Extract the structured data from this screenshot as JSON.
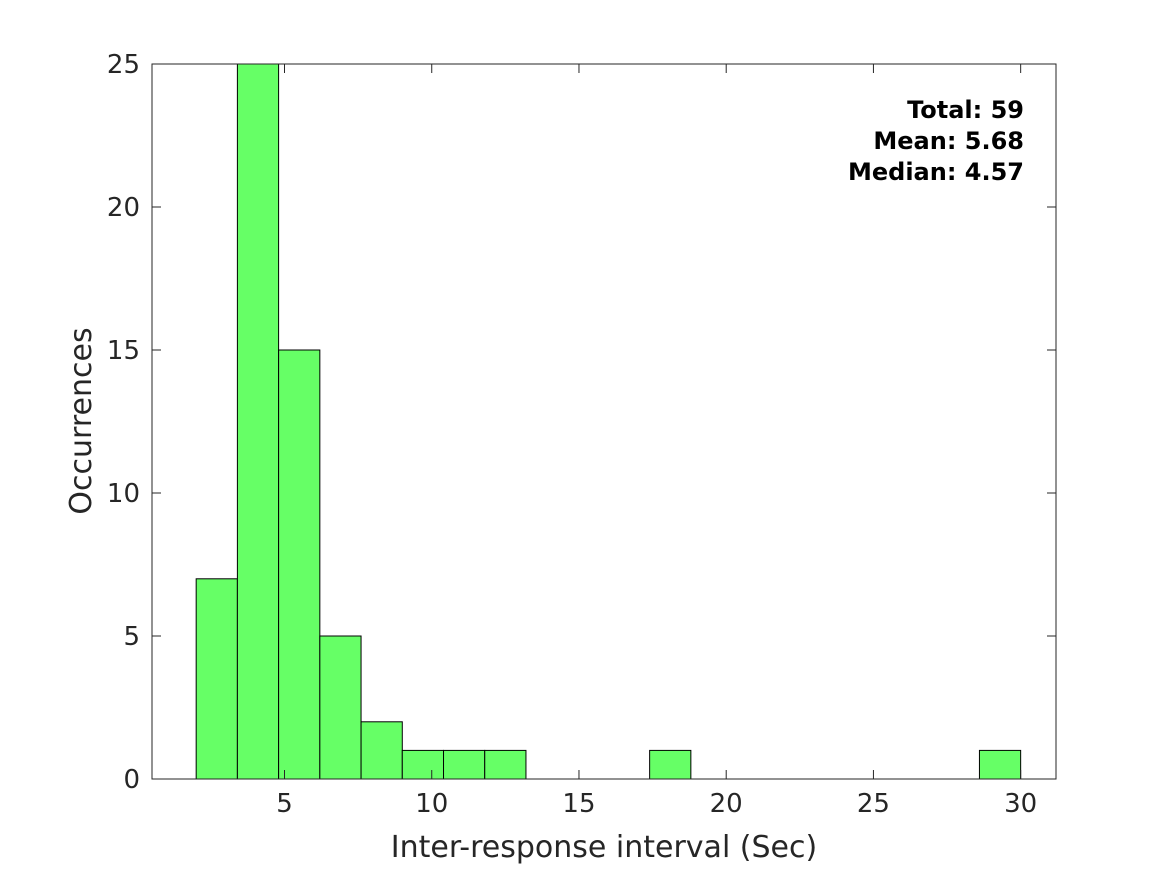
{
  "chart_data": {
    "type": "bar",
    "title": "",
    "xlabel": "Inter-response interval (Sec)",
    "ylabel": "Occurrences",
    "xlim": [
      0.5,
      31.2
    ],
    "ylim": [
      0,
      25
    ],
    "xticks": [
      5,
      10,
      15,
      20,
      25,
      30
    ],
    "yticks": [
      0,
      5,
      10,
      15,
      20,
      25
    ],
    "grid": false,
    "bin_edges": [
      2.0,
      3.4,
      4.8,
      6.2,
      7.6,
      9.0,
      10.4,
      11.8,
      13.2,
      14.6,
      16.0,
      17.4,
      18.8,
      20.2,
      21.6,
      23.0,
      24.4,
      25.8,
      27.2,
      28.6,
      30.0
    ],
    "values": [
      7,
      25,
      15,
      5,
      2,
      1,
      1,
      1,
      0,
      0,
      0,
      1,
      0,
      0,
      0,
      0,
      0,
      0,
      0,
      1
    ],
    "bar_color": "#66ff66",
    "edge_color": "#000000",
    "annotations": {
      "total": "Total: 59",
      "mean": "Mean: 5.68",
      "median": "Median: 4.57"
    }
  }
}
